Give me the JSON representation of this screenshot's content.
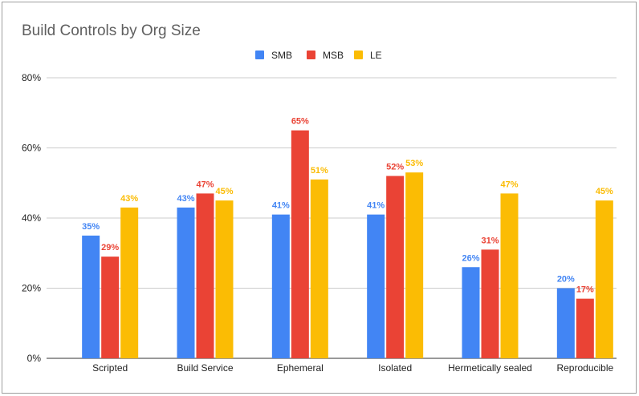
{
  "chart_data": {
    "type": "bar",
    "title": "Build Controls by Org Size",
    "xlabel": "",
    "ylabel": "",
    "ylim": [
      0,
      80
    ],
    "yticks": [
      "0%",
      "20%",
      "40%",
      "60%",
      "80%"
    ],
    "grid": true,
    "legend_position": "top",
    "categories": [
      "Scripted",
      "Build Service",
      "Ephemeral",
      "Isolated",
      "Hermetically sealed",
      "Reproducible"
    ],
    "series": [
      {
        "name": "SMB",
        "color": "#4285f4",
        "values": [
          35,
          43,
          41,
          41,
          26,
          20
        ],
        "labels": [
          "35%",
          "43%",
          "41%",
          "41%",
          "26%",
          "20%"
        ]
      },
      {
        "name": "MSB",
        "color": "#ea4335",
        "values": [
          29,
          47,
          65,
          52,
          31,
          17
        ],
        "labels": [
          "29%",
          "47%",
          "65%",
          "52%",
          "31%",
          "17%"
        ]
      },
      {
        "name": "LE",
        "color": "#fbbc04",
        "values": [
          43,
          45,
          51,
          53,
          47,
          45
        ],
        "labels": [
          "43%",
          "45%",
          "51%",
          "53%",
          "47%",
          "45%"
        ]
      }
    ]
  }
}
